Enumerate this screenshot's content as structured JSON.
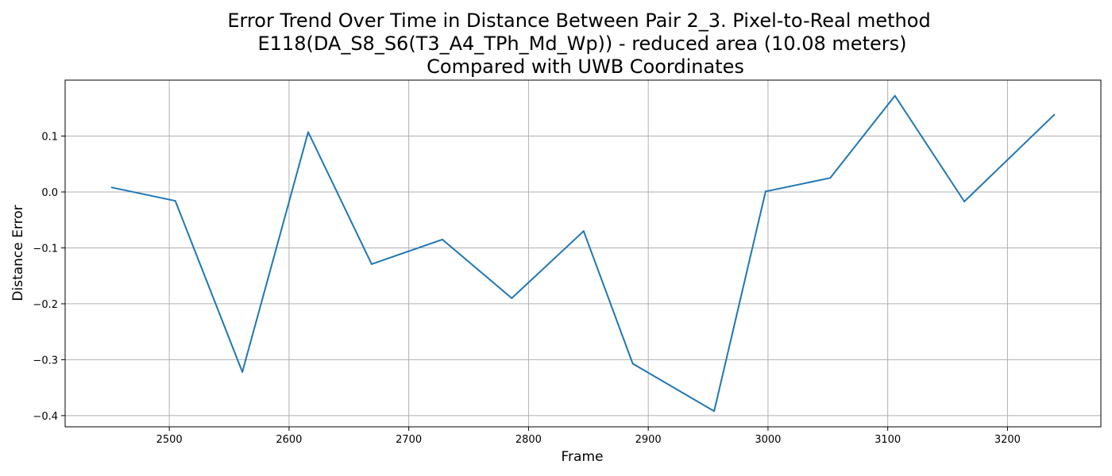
{
  "chart_data": {
    "type": "line",
    "title_lines": [
      "Error Trend Over Time in Distance Between Pair 2_3. Pixel-to-Real method",
      "E118(DA_S8_S6(T3_A4_TPh_Md_Wp)) - reduced area (10.08 meters)",
      "Compared with UWB Coordinates"
    ],
    "xlabel": "Frame",
    "ylabel": "Distance Error",
    "xlim": [
      2413,
      3278
    ],
    "ylim": [
      -0.42,
      0.2
    ],
    "xticks": [
      2500,
      2600,
      2700,
      2800,
      2900,
      3000,
      3100,
      3200
    ],
    "yticks": [
      0.1,
      0.0,
      -0.1,
      -0.2,
      -0.3,
      -0.4
    ],
    "ytick_labels": [
      "0.1",
      "0.0",
      "−0.1",
      "−0.2",
      "−0.3",
      "−0.4"
    ],
    "grid": true,
    "line_color": "#1f77b4",
    "series": [
      {
        "x": [
          2452,
          2505,
          2561,
          2616,
          2669,
          2728,
          2786,
          2846,
          2887,
          2955,
          2998,
          3052,
          3106,
          3164,
          3239
        ],
        "y": [
          0.008,
          -0.016,
          -0.322,
          0.107,
          -0.129,
          -0.085,
          -0.19,
          -0.07,
          -0.307,
          -0.392,
          0.001,
          0.025,
          0.172,
          -0.017,
          0.138
        ]
      }
    ]
  }
}
